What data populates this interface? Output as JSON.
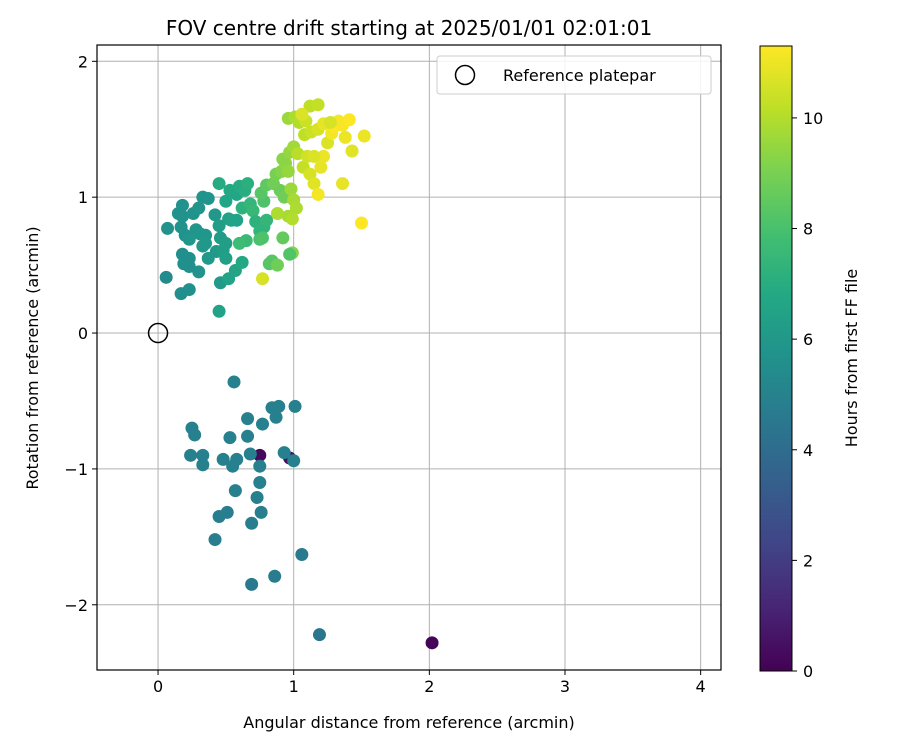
{
  "chart_data": {
    "type": "scatter",
    "title": "FOV centre drift starting at 2025/01/01 02:01:01",
    "xlabel": "Angular distance from reference (arcmin)",
    "ylabel": "Rotation from reference (arcmin)",
    "xlim": [
      -0.45,
      4.15
    ],
    "ylim": [
      -2.48,
      2.12
    ],
    "xticks": [
      0,
      1,
      2,
      3,
      4
    ],
    "xtick_labels": [
      "0",
      "1",
      "2",
      "3",
      "4"
    ],
    "yticks": [
      -2,
      -1,
      0,
      1,
      2
    ],
    "ytick_labels": [
      "−2",
      "−1",
      "0",
      "1",
      "2"
    ],
    "grid": true,
    "legend": {
      "placement": "top-right",
      "entries": [
        {
          "label": "Reference platepar",
          "marker": "open-circle"
        }
      ]
    },
    "reference_point": {
      "name": "Reference platepar",
      "x": 0,
      "y": 0
    },
    "colorbar": {
      "label": "Hours from first FF file",
      "colormap": "viridis",
      "range": [
        0,
        11.3
      ],
      "ticks": [
        0,
        2,
        4,
        6,
        8,
        10
      ],
      "tick_labels": [
        "0",
        "2",
        "4",
        "6",
        "8",
        "10"
      ]
    },
    "points": [
      [
        2.02,
        -2.28,
        0.1
      ],
      [
        0.75,
        -0.9,
        0.3
      ],
      [
        0.97,
        -0.92,
        0.5
      ],
      [
        1.19,
        -2.22,
        4.4
      ],
      [
        1.06,
        -1.63,
        4.6
      ],
      [
        0.69,
        -1.85,
        4.6
      ],
      [
        0.86,
        -1.79,
        4.7
      ],
      [
        0.42,
        -1.52,
        4.8
      ],
      [
        0.45,
        -1.35,
        4.8
      ],
      [
        0.51,
        -1.32,
        4.8
      ],
      [
        0.69,
        -1.4,
        4.8
      ],
      [
        0.76,
        -1.32,
        4.8
      ],
      [
        0.73,
        -1.21,
        4.9
      ],
      [
        0.57,
        -1.16,
        4.9
      ],
      [
        0.75,
        -1.1,
        4.9
      ],
      [
        0.55,
        -0.98,
        4.9
      ],
      [
        0.75,
        -0.98,
        4.9
      ],
      [
        0.58,
        -0.93,
        4.9
      ],
      [
        0.48,
        -0.93,
        4.9
      ],
      [
        0.33,
        -0.97,
        4.9
      ],
      [
        0.24,
        -0.9,
        4.9
      ],
      [
        0.33,
        -0.9,
        4.9
      ],
      [
        0.68,
        -0.89,
        4.9
      ],
      [
        0.53,
        -0.77,
        4.9
      ],
      [
        0.66,
        -0.76,
        4.9
      ],
      [
        0.27,
        -0.75,
        4.9
      ],
      [
        0.25,
        -0.7,
        4.9
      ],
      [
        0.77,
        -0.67,
        4.9
      ],
      [
        0.66,
        -0.63,
        4.9
      ],
      [
        0.87,
        -0.62,
        4.9
      ],
      [
        0.84,
        -0.55,
        4.9
      ],
      [
        0.89,
        -0.54,
        4.9
      ],
      [
        1.01,
        -0.54,
        4.9
      ],
      [
        0.56,
        -0.36,
        4.9
      ],
      [
        0.93,
        -0.88,
        4.9
      ],
      [
        1.0,
        -0.94,
        4.9
      ],
      [
        0.06,
        0.41,
        5.4
      ],
      [
        0.17,
        0.29,
        5.6
      ],
      [
        0.23,
        0.32,
        5.6
      ],
      [
        0.3,
        0.45,
        5.7
      ],
      [
        0.23,
        0.49,
        5.6
      ],
      [
        0.19,
        0.51,
        5.6
      ],
      [
        0.18,
        0.58,
        5.6
      ],
      [
        0.23,
        0.55,
        5.6
      ],
      [
        0.2,
        0.72,
        5.7
      ],
      [
        0.17,
        0.78,
        5.7
      ],
      [
        0.07,
        0.77,
        5.7
      ],
      [
        0.18,
        0.86,
        5.7
      ],
      [
        0.15,
        0.88,
        5.7
      ],
      [
        0.18,
        0.94,
        5.7
      ],
      [
        0.26,
        0.88,
        5.7
      ],
      [
        0.28,
        0.76,
        5.8
      ],
      [
        0.31,
        0.73,
        5.9
      ],
      [
        0.35,
        0.72,
        5.9
      ],
      [
        0.33,
        0.64,
        6.0
      ],
      [
        0.37,
        0.55,
        6.0
      ],
      [
        0.43,
        0.6,
        6.0
      ],
      [
        0.35,
        0.66,
        6.0
      ],
      [
        0.23,
        0.69,
        5.9
      ],
      [
        0.3,
        0.92,
        5.8
      ],
      [
        0.33,
        1.0,
        5.8
      ],
      [
        0.37,
        0.99,
        5.8
      ],
      [
        0.42,
        0.87,
        6.0
      ],
      [
        0.45,
        0.79,
        6.2
      ],
      [
        0.46,
        0.7,
        6.2
      ],
      [
        0.48,
        0.61,
        6.3
      ],
      [
        0.5,
        0.55,
        6.4
      ],
      [
        0.5,
        0.66,
        6.3
      ],
      [
        0.46,
        0.37,
        6.1
      ],
      [
        0.52,
        0.4,
        6.5
      ],
      [
        0.57,
        0.46,
        6.6
      ],
      [
        0.62,
        0.52,
        6.8
      ],
      [
        0.45,
        0.16,
        6.5
      ],
      [
        0.52,
        0.84,
        6.4
      ],
      [
        0.54,
        0.83,
        6.5
      ],
      [
        0.58,
        0.83,
        6.5
      ],
      [
        0.5,
        0.97,
        6.7
      ],
      [
        0.53,
        1.05,
        6.8
      ],
      [
        0.58,
        1.02,
        6.7
      ],
      [
        0.6,
        1.08,
        6.9
      ],
      [
        0.64,
        1.05,
        7.0
      ],
      [
        0.66,
        1.1,
        7.1
      ],
      [
        0.45,
        1.1,
        6.9
      ],
      [
        0.62,
        0.92,
        7.2
      ],
      [
        0.68,
        0.95,
        7.4
      ],
      [
        0.7,
        0.9,
        7.5
      ],
      [
        0.72,
        0.82,
        7.2
      ],
      [
        0.75,
        0.75,
        7.3
      ],
      [
        0.78,
        0.78,
        7.3
      ],
      [
        0.8,
        0.83,
        7.4
      ],
      [
        0.65,
        0.68,
        7.6
      ],
      [
        0.6,
        0.66,
        7.7
      ],
      [
        0.75,
        0.69,
        8.0
      ],
      [
        0.77,
        0.7,
        8.1
      ],
      [
        0.82,
        0.51,
        8.3
      ],
      [
        0.84,
        0.53,
        8.3
      ],
      [
        0.88,
        0.5,
        8.8
      ],
      [
        0.92,
        0.7,
        8.6
      ],
      [
        0.78,
        0.97,
        8.1
      ],
      [
        0.76,
        1.03,
        8.3
      ],
      [
        0.8,
        1.09,
        8.5
      ],
      [
        0.9,
        1.05,
        8.7
      ],
      [
        0.93,
        1.0,
        8.8
      ],
      [
        0.85,
        1.1,
        8.8
      ],
      [
        0.87,
        1.17,
        9.0
      ],
      [
        0.91,
        1.19,
        9.2
      ],
      [
        0.94,
        1.25,
        9.4
      ],
      [
        0.96,
        1.19,
        9.5
      ],
      [
        0.98,
        1.06,
        9.6
      ],
      [
        1.0,
        0.98,
        9.8
      ],
      [
        1.02,
        0.92,
        9.9
      ],
      [
        0.96,
        0.86,
        9.8
      ],
      [
        0.88,
        0.88,
        9.9
      ],
      [
        0.99,
        0.84,
        10.0
      ],
      [
        0.92,
        1.28,
        9.3
      ],
      [
        0.97,
        1.33,
        9.5
      ],
      [
        1.0,
        1.37,
        9.7
      ],
      [
        1.03,
        1.32,
        10.1
      ],
      [
        1.07,
        1.22,
        10.3
      ],
      [
        1.1,
        1.3,
        10.5
      ],
      [
        1.12,
        1.17,
        10.6
      ],
      [
        1.15,
        1.1,
        10.8
      ],
      [
        1.18,
        1.02,
        11.1
      ],
      [
        1.2,
        1.22,
        10.9
      ],
      [
        1.22,
        1.3,
        11.0
      ],
      [
        1.15,
        1.3,
        10.7
      ],
      [
        0.96,
        1.58,
        9.6
      ],
      [
        1.01,
        1.59,
        9.9
      ],
      [
        1.04,
        1.55,
        10.0
      ],
      [
        1.08,
        1.46,
        10.2
      ],
      [
        1.13,
        1.48,
        10.4
      ],
      [
        1.18,
        1.5,
        10.6
      ],
      [
        1.22,
        1.54,
        10.9
      ],
      [
        1.25,
        1.4,
        10.7
      ],
      [
        1.28,
        1.47,
        11.1
      ],
      [
        1.3,
        1.52,
        11.3
      ],
      [
        1.33,
        1.56,
        11.2
      ],
      [
        1.36,
        1.53,
        11.2
      ],
      [
        1.38,
        1.44,
        11.0
      ],
      [
        1.41,
        1.57,
        11.3
      ],
      [
        1.12,
        1.67,
        10.2
      ],
      [
        1.18,
        1.68,
        10.3
      ],
      [
        1.27,
        1.55,
        10.6
      ],
      [
        1.43,
        1.34,
        10.8
      ],
      [
        1.36,
        1.1,
        10.9
      ],
      [
        1.5,
        0.81,
        11.3
      ],
      [
        1.52,
        1.45,
        11.0
      ],
      [
        1.09,
        1.56,
        10.4
      ],
      [
        1.06,
        1.61,
        10.7
      ],
      [
        0.77,
        0.4,
        10.6
      ],
      [
        0.99,
        0.59,
        9.2
      ],
      [
        0.97,
        0.58,
        8.2
      ]
    ]
  }
}
